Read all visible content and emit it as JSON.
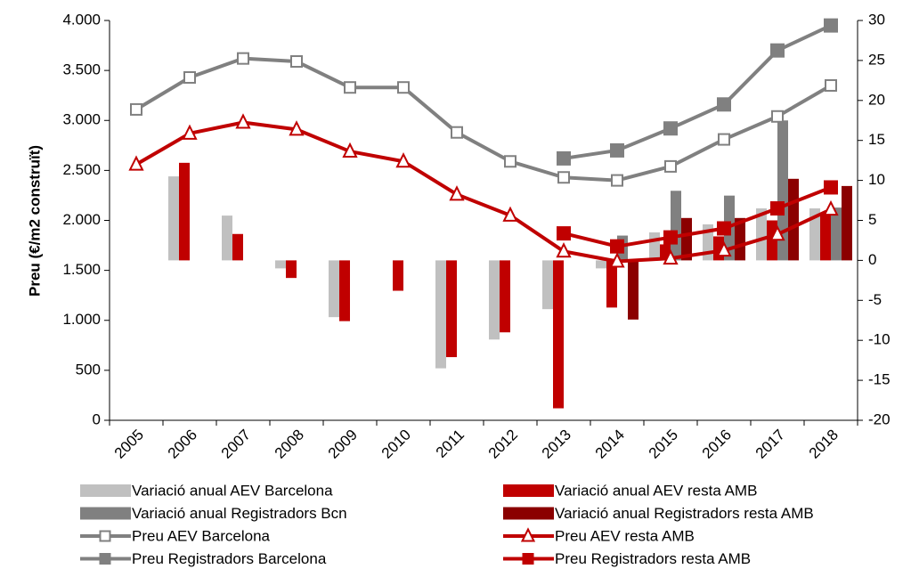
{
  "chart_data": {
    "type": "combo",
    "y_label": "Preu (€/m2 construït)",
    "categories": [
      "2005",
      "2006",
      "2007",
      "2008",
      "2009",
      "2010",
      "2011",
      "2012",
      "2013",
      "2014",
      "2015",
      "2016",
      "2017",
      "2018"
    ],
    "ylim": [
      0,
      4000
    ],
    "yticks": [
      0,
      {
        "value": 500,
        "label": "500"
      },
      {
        "value": 1000,
        "label": "1.000"
      },
      {
        "value": 1500,
        "label": "1.500"
      },
      {
        "value": 2000,
        "label": "2.000"
      },
      {
        "value": 2500,
        "label": "2.500"
      },
      {
        "value": 3000,
        "label": "3.000"
      },
      {
        "value": 3500,
        "label": "3.500"
      },
      {
        "value": 4000,
        "label": "4.000"
      }
    ],
    "y2lim": [
      -20,
      30
    ],
    "y2ticks": [
      -20,
      -15,
      -10,
      -5,
      0,
      5,
      10,
      15,
      20,
      25,
      30
    ],
    "series": [
      {
        "name": "Variació anual AEV Barcelona",
        "type": "bar",
        "axis": "y2",
        "color": "#c0c0c0",
        "values": [
          null,
          10.5,
          5.6,
          -1.0,
          -7.1,
          null,
          -13.5,
          -9.9,
          -6.1,
          -1.0,
          3.5,
          4.5,
          6.5,
          6.5
        ]
      },
      {
        "name": "Variació anual AEV resta AMB",
        "type": "bar",
        "axis": "y2",
        "color": "#c00000",
        "values": [
          null,
          12.2,
          3.3,
          -2.2,
          -7.6,
          -3.8,
          -12.1,
          -9.0,
          -18.5,
          -5.9,
          2.0,
          3.0,
          5.0,
          6.0
        ]
      },
      {
        "name": "Variació anual Registradors Bcn",
        "type": "bar",
        "axis": "y2",
        "color": "#808080",
        "values": [
          null,
          null,
          null,
          null,
          null,
          null,
          null,
          null,
          null,
          3.1,
          8.7,
          8.1,
          17.5,
          6.6
        ]
      },
      {
        "name": "Variació anual Registradors resta AMB",
        "type": "bar",
        "axis": "y2",
        "color": "#8b0000",
        "values": [
          null,
          null,
          null,
          null,
          null,
          null,
          null,
          null,
          null,
          -7.4,
          5.3,
          5.3,
          10.2,
          9.3
        ]
      },
      {
        "name": "Preu AEV Barcelona",
        "type": "line",
        "color": "#808080",
        "marker": "square",
        "marker_fill": "#ffffff",
        "values": [
          3110,
          3430,
          3620,
          3590,
          3330,
          3330,
          2880,
          2590,
          2430,
          2400,
          2540,
          2810,
          3040,
          3350
        ]
      },
      {
        "name": "Preu AEV resta AMB",
        "type": "line",
        "color": "#c00000",
        "marker": "triangle",
        "marker_fill": "#ffffff",
        "values": [
          2560,
          2870,
          2980,
          2910,
          2690,
          2590,
          2260,
          2050,
          1690,
          1590,
          1620,
          1700,
          1860,
          2110
        ]
      },
      {
        "name": "Preu Registradors Barcelona",
        "type": "line",
        "color": "#808080",
        "marker": "square",
        "marker_fill": "#808080",
        "values": [
          null,
          null,
          null,
          null,
          null,
          null,
          null,
          null,
          2620,
          2700,
          2920,
          3160,
          3700,
          3950
        ]
      },
      {
        "name": "Preu Registradors resta AMB",
        "type": "line",
        "color": "#c00000",
        "marker": "square",
        "marker_fill": "#c00000",
        "values": [
          null,
          null,
          null,
          null,
          null,
          null,
          null,
          null,
          1870,
          1740,
          1830,
          1920,
          2120,
          2330
        ]
      }
    ]
  }
}
